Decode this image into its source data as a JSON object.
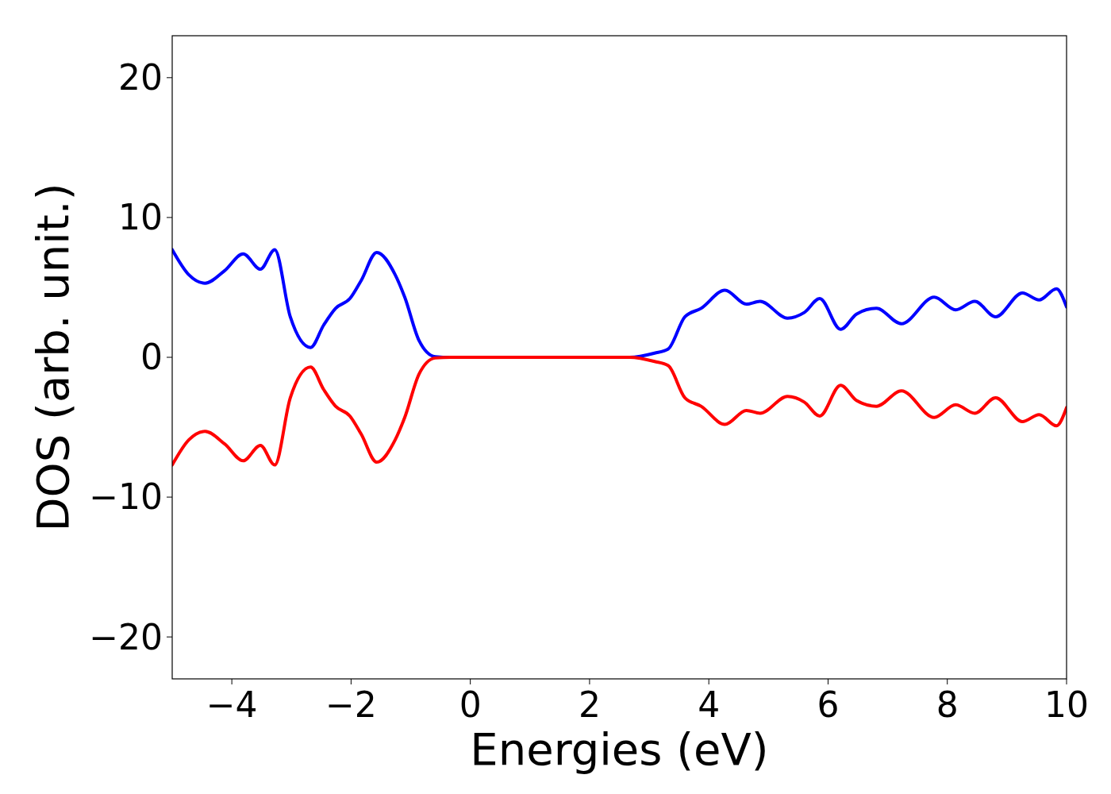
{
  "chart_data": {
    "type": "line",
    "xlabel": "Energies (eV)",
    "ylabel": "DOS (arb. unit.)",
    "xlim": [
      -5,
      10
    ],
    "ylim": [
      -23,
      23
    ],
    "xticks": [
      {
        "value": -4,
        "label": "−4"
      },
      {
        "value": -2,
        "label": "−2"
      },
      0,
      2,
      4,
      6,
      8,
      10
    ],
    "yticks": [
      {
        "value": -20,
        "label": "−20"
      },
      {
        "value": -10,
        "label": "−10"
      },
      0,
      10,
      20
    ],
    "grid": false,
    "marker": "none",
    "line_style": "solid",
    "x": [
      -5,
      -4.72,
      -4.45,
      -4.12,
      -3.81,
      -3.52,
      -3.28,
      -3.02,
      -2.68,
      -2.46,
      -2.26,
      -2.02,
      -1.83,
      -1.57,
      -1.26,
      -1.1,
      -0.86,
      -0.59,
      -0.33,
      0,
      1,
      2,
      2.67,
      3.09,
      3.32,
      3.6,
      3.87,
      4.27,
      4.63,
      4.86,
      5.32,
      5.6,
      5.86,
      6.21,
      6.48,
      6.81,
      7.23,
      7.78,
      8.14,
      8.46,
      8.81,
      9.26,
      9.54,
      9.83,
      10
    ],
    "series": [
      {
        "color": "#0000ff",
        "values": [
          7.7,
          5.9,
          5.3,
          6.2,
          7.4,
          6.3,
          7.7,
          2.9,
          0.7,
          2.3,
          3.5,
          4.2,
          5.5,
          7.5,
          5.9,
          4.3,
          1.2,
          0.05,
          0,
          0,
          0,
          0,
          0,
          0.3,
          0.6,
          2.9,
          3.5,
          4.8,
          3.8,
          4,
          2.8,
          3.2,
          4.2,
          2,
          3.1,
          3.5,
          2.4,
          4.3,
          3.4,
          4,
          2.9,
          4.6,
          4.1,
          4.9,
          3.6
        ]
      },
      {
        "color": "#ff0000",
        "values": [
          -7.7,
          -5.9,
          -5.3,
          -6.2,
          -7.4,
          -6.3,
          -7.7,
          -2.9,
          -0.7,
          -2.3,
          -3.5,
          -4.2,
          -5.5,
          -7.5,
          -5.9,
          -4.3,
          -1.2,
          -0.05,
          0,
          0,
          0,
          0,
          0,
          -0.3,
          -0.6,
          -2.9,
          -3.5,
          -4.8,
          -3.8,
          -4,
          -2.8,
          -3.2,
          -4.2,
          -2,
          -3.1,
          -3.5,
          -2.4,
          -4.3,
          -3.4,
          -4,
          -2.9,
          -4.6,
          -4.1,
          -4.9,
          -3.6
        ]
      }
    ]
  }
}
